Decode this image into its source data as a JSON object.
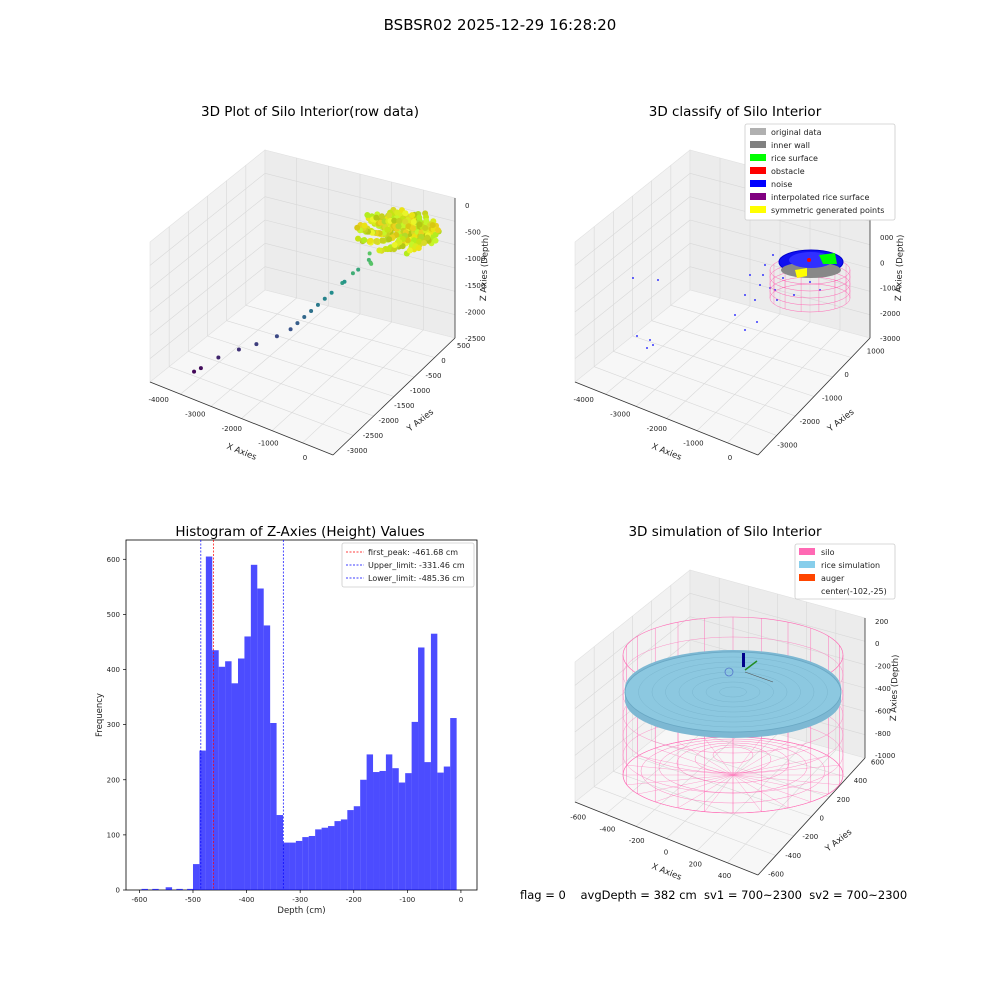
{
  "page_title": "BSBSR02 2025-12-29 16:28:20",
  "footer": "flag = 0    avgDepth = 382 cm  sv1 = 700~2300  sv2 = 700~2300",
  "chart_data": [
    {
      "type": "scatter",
      "title": "3D Plot of Silo Interior(row data)",
      "xlabel": "X Axies",
      "ylabel": "Y Axies",
      "zlabel": "Z Axies (Depth)",
      "x_ticks": [
        "-4000",
        "-3000",
        "-2000",
        "-1000",
        "0"
      ],
      "y_ticks": [
        "500",
        "0",
        "-500",
        "-1000",
        "-1500",
        "-2000",
        "-2500",
        "-3000"
      ],
      "z_ticks": [
        "0",
        "-500",
        "-1000",
        "-1500",
        "-2000",
        "-2500"
      ],
      "xlim": [
        -4300,
        500
      ],
      "ylim": [
        -3100,
        700
      ],
      "zlim": [
        -2600,
        100
      ],
      "colormap": "viridis",
      "points": [
        {
          "x": -1000,
          "y": 0,
          "z": -600
        },
        {
          "x": -900,
          "y": -100,
          "z": -700
        },
        {
          "x": -800,
          "y": -200,
          "z": -650
        },
        {
          "x": -1100,
          "y": 100,
          "z": -800
        },
        {
          "x": -1200,
          "y": -300,
          "z": -900
        },
        {
          "x": -1300,
          "y": 0,
          "z": -1000
        },
        {
          "x": -1400,
          "y": -400,
          "z": -1100
        },
        {
          "x": -1500,
          "y": -200,
          "z": -1200
        },
        {
          "x": -1600,
          "y": -500,
          "z": -1300
        },
        {
          "x": -1700,
          "y": -600,
          "z": -1400
        },
        {
          "x": -1800,
          "y": -700,
          "z": -1500
        },
        {
          "x": -1900,
          "y": -800,
          "z": -1600
        },
        {
          "x": -2000,
          "y": -900,
          "z": -1700
        },
        {
          "x": -2100,
          "y": -1000,
          "z": -1800
        },
        {
          "x": -2200,
          "y": -1100,
          "z": -1900
        },
        {
          "x": -2400,
          "y": -1300,
          "z": -2000
        },
        {
          "x": -2700,
          "y": -1600,
          "z": -2100
        },
        {
          "x": -3000,
          "y": -1800,
          "z": -2200
        },
        {
          "x": -3300,
          "y": -2100,
          "z": -2300
        },
        {
          "x": -3600,
          "y": -2300,
          "z": -2500
        },
        {
          "x": -3700,
          "y": -2400,
          "z": -2550
        }
      ]
    },
    {
      "type": "scatter",
      "title": "3D classify of Silo Interior",
      "xlabel": "X Axies",
      "ylabel": "Y Axies",
      "zlabel": "Z Axies (Depth)",
      "x_ticks": [
        "-4000",
        "-3000",
        "-2000",
        "-1000",
        "0"
      ],
      "y_ticks": [
        "1000",
        "0",
        "-1000",
        "-2000",
        "-3000"
      ],
      "z_ticks": [
        "000",
        "0",
        "-1000",
        "-2000",
        "-3000"
      ],
      "legend_position": "top-right",
      "legend": [
        {
          "label": "original data",
          "color": "#b0b0b0"
        },
        {
          "label": "inner wall",
          "color": "#808080"
        },
        {
          "label": "rice surface",
          "color": "#00ff00"
        },
        {
          "label": "obstacle",
          "color": "#ff0000"
        },
        {
          "label": "noise",
          "color": "#0000ff"
        },
        {
          "label": "interpolated rice surface",
          "color": "#800080"
        },
        {
          "label": "symmetric generated points",
          "color": "#ffff00"
        }
      ]
    },
    {
      "type": "bar",
      "title": "Histogram of Z-Axies (Height) Values",
      "xlabel": "Depth (cm)",
      "ylabel": "Frequency",
      "xlim": [
        -625,
        30
      ],
      "ylim": [
        0,
        635
      ],
      "x_ticks": [
        -600,
        -500,
        -400,
        -300,
        -200,
        -100,
        0
      ],
      "y_ticks": [
        0,
        100,
        200,
        300,
        400,
        500,
        600
      ],
      "bar_color": "#0000ff",
      "bin_start": -595,
      "bin_width": 10,
      "values": [
        2,
        2,
        0,
        5,
        0,
        2,
        2,
        0,
        2,
        0,
        2,
        0,
        0,
        0,
        0,
        2,
        2,
        0,
        0,
        2,
        0,
        2,
        0,
        2,
        0,
        2,
        0,
        2,
        0,
        2,
        0,
        0,
        2,
        0,
        2,
        0,
        2,
        0,
        2,
        0,
        2,
        0,
        2,
        0,
        2,
        0,
        0,
        0,
        0,
        2,
        0,
        2,
        0,
        2,
        0,
        2,
        0,
        2,
        0,
        0
      ],
      "bars": [
        {
          "x": -590,
          "v": 2
        },
        {
          "x": -570,
          "v": 2
        },
        {
          "x": -545,
          "v": 5
        },
        {
          "x": -525,
          "v": 2
        },
        {
          "x": -505,
          "v": 2
        },
        {
          "x": -494,
          "v": 47
        },
        {
          "x": -482,
          "v": 253
        },
        {
          "x": -470,
          "v": 605
        },
        {
          "x": -458,
          "v": 435
        },
        {
          "x": -446,
          "v": 405
        },
        {
          "x": -434,
          "v": 415
        },
        {
          "x": -422,
          "v": 375
        },
        {
          "x": -410,
          "v": 420
        },
        {
          "x": -398,
          "v": 460
        },
        {
          "x": -386,
          "v": 590
        },
        {
          "x": -374,
          "v": 547
        },
        {
          "x": -362,
          "v": 480
        },
        {
          "x": -350,
          "v": 303
        },
        {
          "x": -338,
          "v": 136
        },
        {
          "x": -326,
          "v": 86
        },
        {
          "x": -314,
          "v": 86
        },
        {
          "x": -302,
          "v": 89
        },
        {
          "x": -290,
          "v": 96
        },
        {
          "x": -278,
          "v": 98
        },
        {
          "x": -266,
          "v": 110
        },
        {
          "x": -254,
          "v": 113
        },
        {
          "x": -242,
          "v": 116
        },
        {
          "x": -230,
          "v": 125
        },
        {
          "x": -218,
          "v": 128
        },
        {
          "x": -206,
          "v": 145
        },
        {
          "x": -194,
          "v": 152
        },
        {
          "x": -182,
          "v": 200
        },
        {
          "x": -170,
          "v": 246
        },
        {
          "x": -158,
          "v": 214
        },
        {
          "x": -146,
          "v": 216
        },
        {
          "x": -134,
          "v": 246
        },
        {
          "x": -122,
          "v": 221
        },
        {
          "x": -110,
          "v": 195
        },
        {
          "x": -98,
          "v": 212
        },
        {
          "x": -86,
          "v": 305
        },
        {
          "x": -74,
          "v": 440
        },
        {
          "x": -62,
          "v": 232
        },
        {
          "x": -50,
          "v": 465
        },
        {
          "x": -38,
          "v": 213
        },
        {
          "x": -26,
          "v": 224
        },
        {
          "x": -14,
          "v": 312
        }
      ],
      "bar_step": 12,
      "vlines": [
        {
          "label": "first_peak: -461.68 cm",
          "x": -461.68,
          "color": "#ff0000"
        },
        {
          "label": "Upper_limit: -331.46 cm",
          "x": -331.46,
          "color": "#0000ff"
        },
        {
          "label": "Lower_limit: -485.36 cm",
          "x": -485.36,
          "color": "#0000ff"
        }
      ],
      "legend_position": "top-right"
    },
    {
      "type": "scatter",
      "title": "3D simulation of Silo Interior",
      "xlabel": "X Axies",
      "ylabel": "Y Axies",
      "zlabel": "Z Axies (Depth)",
      "x_ticks": [
        "-600",
        "-400",
        "-200",
        "0",
        "200",
        "400"
      ],
      "y_ticks": [
        "600",
        "400",
        "200",
        "0",
        "-200",
        "-400",
        "-600"
      ],
      "z_ticks": [
        "200",
        "0",
        "-200",
        "-400",
        "-600",
        "-800",
        "-1000"
      ],
      "legend_position": "top-right",
      "legend": [
        {
          "label": "silo",
          "color": "#ff69b4",
          "swatch": true
        },
        {
          "label": "rice simulation",
          "color": "#87ceeb",
          "swatch": true
        },
        {
          "label": "auger",
          "color": "#ff4500",
          "swatch": true
        },
        {
          "label": "center(-102,-25)",
          "color": "#ffffff",
          "swatch": false
        }
      ]
    }
  ]
}
